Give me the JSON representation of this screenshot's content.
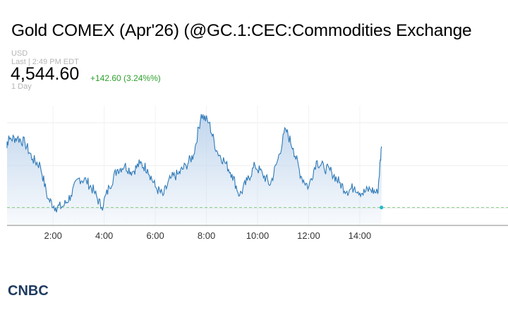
{
  "header": {
    "title": "Gold COMEX (Apr'26) (@GC.1:CEC:Commodities Exchange",
    "currency": "USD",
    "last_time": "Last | 2:49 PM EDT",
    "price": "4,544.60",
    "change": "+142.60 (3.24%%)",
    "range": "1 Day"
  },
  "brand": {
    "logo_text": "CNBC"
  },
  "colors": {
    "line": "#2f7ab8",
    "fill_top": "#bed4ec",
    "positive": "#2ca02c",
    "reference": "#8ccf8c",
    "last_dot": "#27b7d0",
    "axis": "#888888",
    "grid": "#eeeeee"
  },
  "chart_data": {
    "type": "area",
    "title": "",
    "xlabel": "",
    "ylabel": "",
    "x_ticks": [
      {
        "label": "2:00",
        "h": 2
      },
      {
        "label": "4:00",
        "h": 4
      },
      {
        "label": "6:00",
        "h": 6
      },
      {
        "label": "8:00",
        "h": 8
      },
      {
        "label": "10:00",
        "h": 10
      },
      {
        "label": "12:00",
        "h": 12
      },
      {
        "label": "14:00",
        "h": 14
      }
    ],
    "xlim": [
      0.2,
      19.8
    ],
    "ylim": [
      4360,
      4640
    ],
    "reference_price": 4402,
    "grid": "horizontal",
    "series": [
      {
        "x": [
          0.0,
          0.3,
          0.6,
          0.9,
          1.2,
          1.5,
          1.8,
          2.1,
          2.4,
          2.7,
          3.0,
          3.3,
          3.6,
          3.9,
          4.2,
          4.5,
          4.8,
          5.1,
          5.4,
          5.7,
          6.0,
          6.3,
          6.6,
          6.9,
          7.2,
          7.5,
          7.8,
          8.1,
          8.4,
          8.7,
          9.0,
          9.3,
          9.6,
          9.9,
          10.2,
          10.5,
          10.8,
          11.1,
          11.4,
          11.7,
          12.0,
          12.3,
          12.6,
          12.9,
          13.2,
          13.5,
          13.8,
          14.1,
          14.4,
          14.7,
          14.85
        ],
        "y": [
          4545,
          4562,
          4565,
          4553,
          4515,
          4500,
          4422,
          4402,
          4405,
          4430,
          4470,
          4465,
          4440,
          4402,
          4450,
          4490,
          4500,
          4485,
          4505,
          4492,
          4450,
          4430,
          4470,
          4480,
          4500,
          4525,
          4620,
          4600,
          4535,
          4510,
          4480,
          4430,
          4465,
          4500,
          4480,
          4455,
          4515,
          4585,
          4540,
          4475,
          4450,
          4510,
          4495,
          4485,
          4460,
          4440,
          4450,
          4435,
          4445,
          4435,
          4544.6
        ]
      }
    ]
  }
}
